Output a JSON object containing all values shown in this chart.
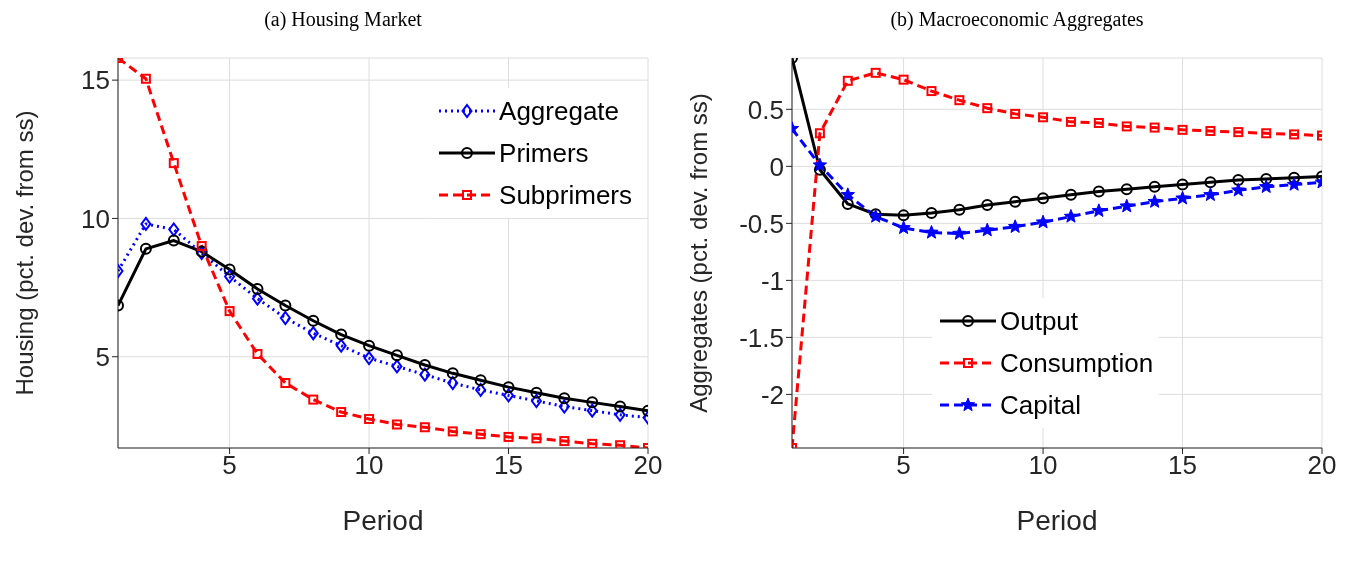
{
  "chart_data": [
    {
      "type": "line",
      "title": "(a) Housing Market",
      "xlabel": "Period",
      "ylabel": "Housing (pct. dev. from ss)",
      "x": [
        1,
        2,
        3,
        4,
        5,
        6,
        7,
        8,
        9,
        10,
        11,
        12,
        13,
        14,
        15,
        16,
        17,
        18,
        19,
        20
      ],
      "xlim": [
        1,
        20
      ],
      "xticks": [
        5,
        10,
        15,
        20
      ],
      "ylim": [
        1.7,
        15.8
      ],
      "yticks": [
        5,
        10,
        15
      ],
      "grid": true,
      "legend": "top right",
      "series": [
        {
          "name": "Aggregate",
          "color": "#0000ff",
          "marker": "diamond",
          "line_style": "dotted",
          "values": [
            8.1,
            9.8,
            9.6,
            8.75,
            7.9,
            7.1,
            6.4,
            5.85,
            5.4,
            4.95,
            4.65,
            4.35,
            4.05,
            3.8,
            3.6,
            3.4,
            3.2,
            3.05,
            2.9,
            2.8
          ]
        },
        {
          "name": "Primers",
          "color": "#000000",
          "marker": "circle",
          "line_style": "solid",
          "values": [
            6.85,
            8.9,
            9.2,
            8.8,
            8.15,
            7.45,
            6.85,
            6.3,
            5.8,
            5.4,
            5.05,
            4.7,
            4.4,
            4.15,
            3.9,
            3.7,
            3.5,
            3.35,
            3.2,
            3.05
          ]
        },
        {
          "name": "Subprimers",
          "color": "#ff0000",
          "marker": "square",
          "line_style": "dashed",
          "values": [
            15.8,
            15.05,
            12.0,
            9.0,
            6.65,
            5.1,
            4.05,
            3.45,
            3.0,
            2.75,
            2.55,
            2.45,
            2.3,
            2.2,
            2.1,
            2.05,
            1.95,
            1.85,
            1.8,
            1.7
          ]
        }
      ]
    },
    {
      "type": "line",
      "title": "(b) Macroeconomic Aggregates",
      "xlabel": "Period",
      "ylabel": "Aggregates (pct. dev. from ss)",
      "x": [
        1,
        2,
        3,
        4,
        5,
        6,
        7,
        8,
        9,
        10,
        11,
        12,
        13,
        14,
        15,
        16,
        17,
        18,
        19,
        20
      ],
      "xlim": [
        1,
        20
      ],
      "xticks": [
        5,
        10,
        15,
        20
      ],
      "ylim": [
        -2.47,
        0.95
      ],
      "yticks": [
        -2,
        -1.5,
        -1,
        -0.5,
        0,
        0.5
      ],
      "grid": true,
      "legend": "bottom",
      "series": [
        {
          "name": "Output",
          "color": "#000000",
          "marker": "circle",
          "line_style": "solid",
          "values": [
            0.95,
            -0.03,
            -0.33,
            -0.42,
            -0.43,
            -0.41,
            -0.38,
            -0.34,
            -0.31,
            -0.28,
            -0.25,
            -0.22,
            -0.2,
            -0.18,
            -0.16,
            -0.14,
            -0.12,
            -0.11,
            -0.1,
            -0.09
          ]
        },
        {
          "name": "Consumption",
          "color": "#ff0000",
          "marker": "square",
          "line_style": "dashed",
          "values": [
            -2.47,
            0.29,
            0.75,
            0.82,
            0.76,
            0.66,
            0.58,
            0.51,
            0.46,
            0.43,
            0.39,
            0.38,
            0.35,
            0.34,
            0.32,
            0.31,
            0.3,
            0.29,
            0.28,
            0.27
          ]
        },
        {
          "name": "Capital",
          "color": "#0000ff",
          "marker": "star",
          "line_style": "dashed",
          "values": [
            0.33,
            0.01,
            -0.25,
            -0.44,
            -0.54,
            -0.58,
            -0.59,
            -0.56,
            -0.53,
            -0.49,
            -0.44,
            -0.39,
            -0.35,
            -0.31,
            -0.28,
            -0.25,
            -0.21,
            -0.18,
            -0.16,
            -0.14
          ]
        }
      ]
    }
  ]
}
